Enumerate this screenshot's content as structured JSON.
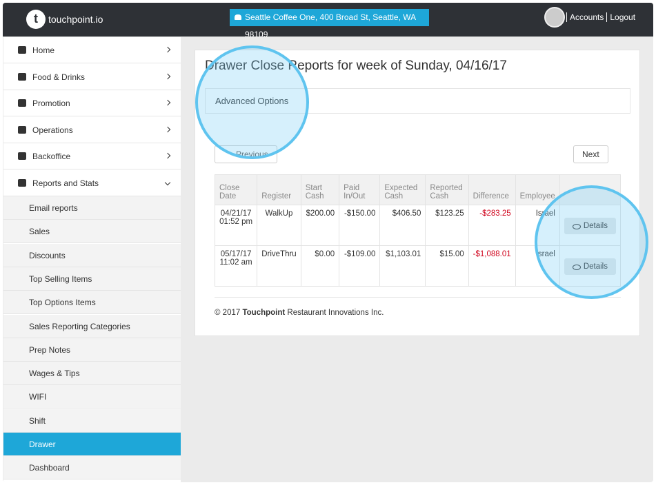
{
  "header": {
    "brand": "touchpoint.io",
    "location": "Seattle Coffee One, 400 Broad St, Seattle, WA 98109",
    "links": [
      "Accounts",
      "Logout"
    ]
  },
  "sidebar": {
    "menu": [
      "Home",
      "Food & Drinks",
      "Promotion",
      "Operations",
      "Backoffice",
      "Reports and Stats"
    ],
    "submenu": [
      "Email reports",
      "Sales",
      "Discounts",
      "Top Selling Items",
      "Top Options Items",
      "Sales Reporting Categories",
      "Prep Notes",
      "Wages & Tips",
      "WIFI",
      "Shift",
      "Drawer",
      "Dashboard"
    ],
    "active": "Drawer"
  },
  "main": {
    "title": "Drawer Close Reports for week of Sunday, 04/16/17",
    "advanced": "Advanced Options",
    "previous": "Previous",
    "next": "Next",
    "table": {
      "columns": [
        "Close Date",
        "Register",
        "Start Cash",
        "Paid In/Out",
        "Expected Cash",
        "Reported Cash",
        "Difference",
        "Employee"
      ],
      "rows": [
        [
          "04/21/17 01:52 pm",
          "WalkUp",
          "$200.00",
          "-$150.00",
          "$406.50",
          "$123.25",
          "-$283.25",
          "Israel",
          "Details"
        ],
        [
          "05/17/17 11:02 am",
          "DriveThru",
          "$0.00",
          "-$109.00",
          "$1,103.01",
          "$15.00",
          "-$1,088.01",
          "Israel",
          "Details"
        ]
      ]
    },
    "footer": {
      "year": "© 2017",
      "company": "Touchpoint",
      "rest": "Restaurant Innovations Inc."
    }
  }
}
